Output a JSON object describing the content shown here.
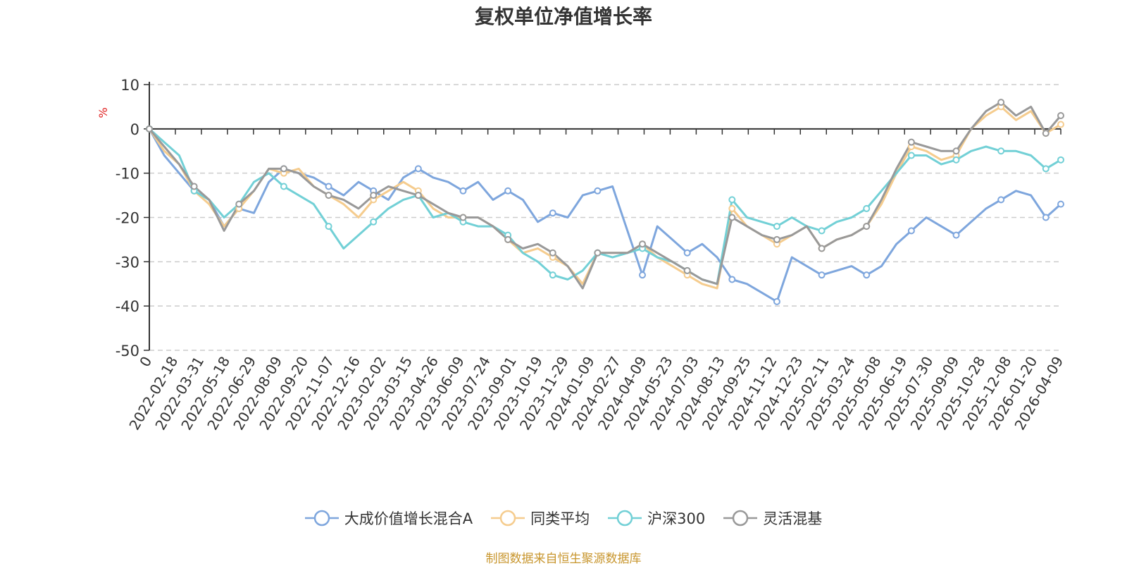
{
  "chart_data": {
    "type": "line",
    "title": "复权单位净值增长率",
    "ylabel": "%",
    "ylim": [
      -50,
      10
    ],
    "yticks": [
      "10",
      "0",
      "-10",
      "-20",
      "-30",
      "-40",
      "-50"
    ],
    "grid": true,
    "legend_position": "bottom-center",
    "x_tick_labels": [
      "0",
      "2022-02-18",
      "2022-03-31",
      "2022-05-18",
      "2022-06-29",
      "2022-08-09",
      "2022-09-20",
      "2022-11-07",
      "2022-12-16",
      "2023-02-02",
      "2023-03-15",
      "2023-04-26",
      "2023-06-09",
      "2023-07-24",
      "2023-09-01",
      "2023-10-19",
      "2023-11-29",
      "2024-01-09",
      "2024-02-27",
      "2024-04-09",
      "2024-05-23",
      "2024-07-03",
      "2024-08-13",
      "2024-09-25",
      "2024-11-12",
      "2024-12-23",
      "2025-02-11",
      "2025-03-24",
      "2025-05-08",
      "2025-06-19",
      "2025-07-30",
      "2025-09-09",
      "2025-10-28",
      "2025-12-08",
      "2026-01-20",
      "2026-04-09"
    ],
    "series": [
      {
        "name": "大成价值增长混合A",
        "color": "#7ea6dd",
        "values": [
          0,
          -6,
          -10,
          -14,
          -16,
          -22,
          -18,
          -19,
          -12,
          -9,
          -10,
          -11,
          -13,
          -15,
          -12,
          -14,
          -16,
          -11,
          -9,
          -11,
          -12,
          -14,
          -12,
          -16,
          -14,
          -16,
          -21,
          -19,
          -20,
          -15,
          -14,
          -13,
          -23,
          -33,
          -22,
          -25,
          -28,
          -26,
          -29,
          -34,
          -35,
          -37,
          -39,
          -29,
          -31,
          -33,
          -32,
          -31,
          -33,
          -31,
          -26,
          -23,
          -20,
          -22,
          -24,
          -21,
          -18,
          -16,
          -14,
          -15,
          -20,
          -17
        ]
      },
      {
        "name": "同类平均",
        "color": "#f5cc8e",
        "values": [
          0,
          -5,
          -8,
          -14,
          -17,
          -22,
          -18,
          -14,
          -9,
          -10,
          -9,
          -13,
          -15,
          -17,
          -20,
          -16,
          -14,
          -12,
          -14,
          -18,
          -20,
          -20,
          -20,
          -22,
          -25,
          -28,
          -27,
          -29,
          -31,
          -35,
          -28,
          -28,
          -28,
          -26,
          -29,
          -31,
          -33,
          -35,
          -36,
          -18,
          -22,
          -24,
          -26,
          -24,
          -22,
          -27,
          -25,
          -24,
          -22,
          -17,
          -10,
          -4,
          -5,
          -7,
          -6,
          0,
          3,
          5,
          2,
          4,
          -1,
          1
        ]
      },
      {
        "name": "沪深300",
        "color": "#72d0d6",
        "values": [
          0,
          -3,
          -6,
          -14,
          -16,
          -20,
          -17,
          -12,
          -10,
          -13,
          -15,
          -17,
          -22,
          -27,
          -24,
          -21,
          -18,
          -16,
          -15,
          -20,
          -19,
          -21,
          -22,
          -22,
          -24,
          -28,
          -30,
          -33,
          -34,
          -32,
          -28,
          -29,
          -28,
          -27,
          -29,
          -30,
          -32,
          -34,
          -35,
          -16,
          -20,
          -21,
          -22,
          -20,
          -22,
          -23,
          -21,
          -20,
          -18,
          -14,
          -10,
          -6,
          -6,
          -8,
          -7,
          -5,
          -4,
          -5,
          -5,
          -6,
          -9,
          -7
        ]
      },
      {
        "name": "灵活混基",
        "color": "#999999",
        "values": [
          0,
          -4,
          -8,
          -13,
          -16,
          -23,
          -17,
          -14,
          -9,
          -9,
          -10,
          -13,
          -15,
          -16,
          -18,
          -15,
          -13,
          -14,
          -15,
          -17,
          -19,
          -20,
          -20,
          -22,
          -25,
          -27,
          -26,
          -28,
          -31,
          -36,
          -28,
          -28,
          -28,
          -26,
          -28,
          -30,
          -32,
          -34,
          -35,
          -20,
          -22,
          -24,
          -25,
          -24,
          -22,
          -27,
          -25,
          -24,
          -22,
          -16,
          -9,
          -3,
          -4,
          -5,
          -5,
          0,
          4,
          6,
          3,
          5,
          -1,
          3
        ]
      }
    ]
  },
  "source_note": "制图数据来自恒生聚源数据库"
}
